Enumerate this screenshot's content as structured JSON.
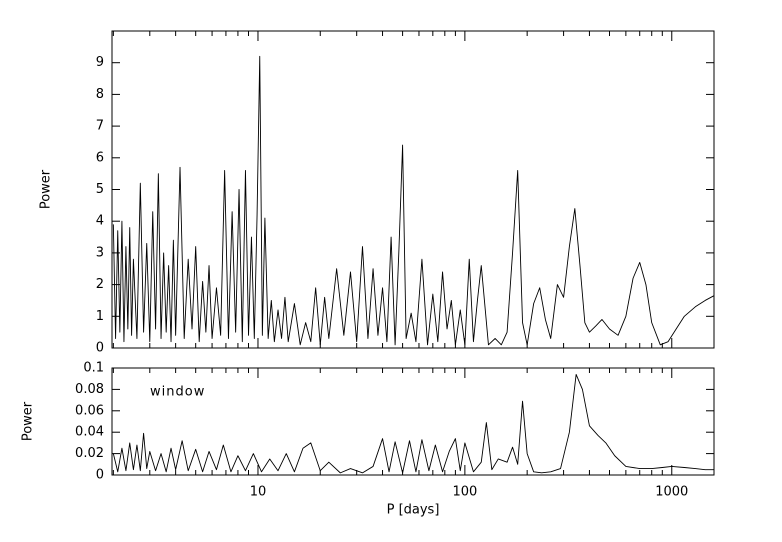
{
  "chart_data": [
    {
      "type": "line",
      "ylabel": "Power",
      "log_x": true,
      "color": "#000000",
      "xlim": [
        1.97,
        1600
      ],
      "xticks": [
        10,
        100,
        1000
      ],
      "xminor_ticks": [
        2,
        3,
        4,
        5,
        6,
        7,
        8,
        9,
        20,
        30,
        40,
        50,
        60,
        70,
        80,
        90,
        200,
        300,
        400,
        500,
        600,
        700,
        800,
        900
      ],
      "ylim": [
        0,
        10
      ],
      "yticks": [
        0,
        1,
        2,
        3,
        4,
        5,
        6,
        7,
        8,
        9
      ],
      "x": [
        2.0,
        2.05,
        2.1,
        2.15,
        2.2,
        2.25,
        2.3,
        2.35,
        2.4,
        2.45,
        2.5,
        2.6,
        2.7,
        2.8,
        2.9,
        3.0,
        3.1,
        3.2,
        3.3,
        3.4,
        3.5,
        3.6,
        3.7,
        3.8,
        3.9,
        4.0,
        4.2,
        4.4,
        4.6,
        4.8,
        5.0,
        5.2,
        5.4,
        5.6,
        5.8,
        6.0,
        6.3,
        6.6,
        6.9,
        7.2,
        7.5,
        7.8,
        8.1,
        8.4,
        8.7,
        9.0,
        9.3,
        9.6,
        9.9,
        10.2,
        10.5,
        10.8,
        11.2,
        11.6,
        12,
        12.5,
        13,
        13.5,
        14,
        15,
        16,
        17,
        18,
        19,
        20,
        21,
        22,
        24,
        26,
        28,
        30,
        32,
        34,
        36,
        38,
        40,
        42,
        44,
        46,
        48,
        50,
        52,
        55,
        58,
        62,
        66,
        70,
        74,
        78,
        82,
        86,
        90,
        95,
        100,
        105,
        110,
        115,
        120,
        130,
        140,
        150,
        160,
        170,
        180,
        190,
        200,
        215,
        230,
        245,
        260,
        280,
        300,
        320,
        340,
        360,
        380,
        400,
        430,
        460,
        500,
        550,
        600,
        650,
        700,
        750,
        800,
        880,
        960,
        1050,
        1150,
        1300,
        1450,
        1600
      ],
      "values": [
        3.9,
        0.3,
        3.7,
        0.5,
        4.0,
        0.2,
        3.2,
        0.6,
        3.8,
        0.4,
        2.8,
        0.3,
        5.2,
        0.5,
        3.3,
        0.2,
        4.3,
        0.6,
        5.5,
        0.3,
        3.0,
        0.5,
        2.6,
        0.2,
        3.4,
        0.4,
        5.7,
        0.3,
        2.8,
        0.6,
        3.2,
        0.2,
        2.1,
        0.5,
        2.6,
        0.3,
        1.9,
        0.4,
        5.6,
        0.3,
        4.3,
        0.5,
        5.0,
        0.2,
        5.6,
        0.4,
        3.5,
        0.3,
        4.2,
        9.2,
        0.4,
        4.1,
        0.3,
        1.5,
        0.2,
        1.2,
        0.3,
        1.6,
        0.2,
        1.4,
        0.1,
        0.8,
        0.2,
        1.9,
        0.1,
        1.6,
        0.3,
        2.5,
        0.4,
        2.4,
        0.2,
        3.2,
        0.3,
        2.5,
        0.4,
        1.9,
        0.2,
        3.5,
        0.1,
        3.1,
        6.4,
        0.3,
        1.1,
        0.2,
        2.8,
        0.1,
        1.7,
        0.2,
        2.4,
        0.6,
        1.5,
        0.1,
        1.2,
        0.1,
        2.8,
        0.2,
        1.5,
        2.6,
        0.1,
        0.3,
        0.1,
        0.5,
        3.0,
        5.6,
        0.8,
        0.1,
        1.4,
        1.9,
        0.9,
        0.3,
        2.0,
        1.6,
        3.2,
        4.4,
        2.6,
        0.8,
        0.5,
        0.7,
        0.9,
        0.6,
        0.4,
        1.0,
        2.2,
        2.7,
        2.0,
        0.8,
        0.1,
        0.2,
        0.6,
        1.0,
        1.3,
        1.5,
        1.65
      ]
    },
    {
      "type": "line",
      "ylabel": "Power",
      "xlabel": "P [days]",
      "annotation": "window",
      "log_x": true,
      "color": "#000000",
      "xlim": [
        1.97,
        1600
      ],
      "xticks": [
        10,
        100,
        1000
      ],
      "xminor_ticks": [
        2,
        3,
        4,
        5,
        6,
        7,
        8,
        9,
        20,
        30,
        40,
        50,
        60,
        70,
        80,
        90,
        200,
        300,
        400,
        500,
        600,
        700,
        800,
        900
      ],
      "ylim": [
        0,
        0.1
      ],
      "yticks": [
        0,
        0.02,
        0.04,
        0.06,
        0.08,
        0.1
      ],
      "x": [
        2.0,
        2.1,
        2.2,
        2.3,
        2.4,
        2.5,
        2.6,
        2.7,
        2.8,
        2.9,
        3.0,
        3.2,
        3.4,
        3.6,
        3.8,
        4.0,
        4.3,
        4.6,
        5.0,
        5.4,
        5.8,
        6.3,
        6.8,
        7.4,
        8.0,
        8.7,
        9.5,
        10.4,
        11.4,
        12.5,
        13.7,
        15,
        16.5,
        18,
        20,
        22,
        25,
        28,
        32,
        36,
        40,
        43,
        46,
        50,
        54,
        58,
        62,
        67,
        72,
        78,
        84,
        90,
        95,
        100,
        110,
        120,
        127,
        135,
        145,
        160,
        170,
        180,
        190,
        200,
        215,
        235,
        260,
        290,
        320,
        345,
        370,
        400,
        440,
        480,
        530,
        600,
        700,
        800,
        900,
        1000,
        1150,
        1300,
        1450,
        1600
      ],
      "values": [
        0.02,
        0.003,
        0.025,
        0.004,
        0.03,
        0.005,
        0.028,
        0.004,
        0.039,
        0.006,
        0.022,
        0.004,
        0.02,
        0.003,
        0.025,
        0.005,
        0.032,
        0.004,
        0.024,
        0.003,
        0.022,
        0.005,
        0.028,
        0.003,
        0.018,
        0.004,
        0.02,
        0.003,
        0.015,
        0.004,
        0.02,
        0.003,
        0.025,
        0.03,
        0.004,
        0.012,
        0.002,
        0.006,
        0.002,
        0.008,
        0.034,
        0.003,
        0.031,
        0.002,
        0.032,
        0.003,
        0.033,
        0.004,
        0.028,
        0.003,
        0.022,
        0.034,
        0.004,
        0.03,
        0.003,
        0.012,
        0.049,
        0.005,
        0.015,
        0.012,
        0.026,
        0.01,
        0.069,
        0.02,
        0.003,
        0.002,
        0.003,
        0.006,
        0.04,
        0.094,
        0.08,
        0.046,
        0.037,
        0.03,
        0.018,
        0.008,
        0.006,
        0.006,
        0.007,
        0.008,
        0.007,
        0.006,
        0.005,
        0.005
      ]
    }
  ]
}
